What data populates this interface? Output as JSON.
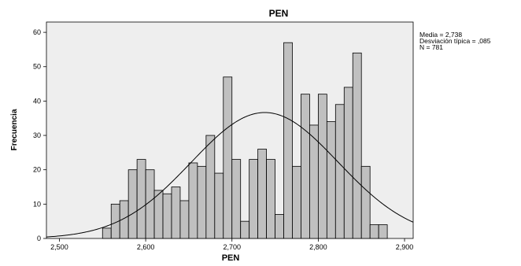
{
  "chart_data": {
    "type": "bar",
    "title": "PEN",
    "xlabel": "PEN",
    "ylabel": "Frecuencia",
    "xlim": [
      2.485,
      2.91
    ],
    "ylim": [
      0,
      63
    ],
    "x_ticks": [
      2.5,
      2.6,
      2.7,
      2.8,
      2.9
    ],
    "x_tick_labels": [
      "2,500",
      "2,600",
      "2,700",
      "2,800",
      "2,900"
    ],
    "y_ticks": [
      0,
      10,
      20,
      30,
      40,
      50,
      60
    ],
    "y_tick_labels": [
      "0",
      "10",
      "20",
      "30",
      "40",
      "50",
      "60"
    ],
    "bin_width": 0.01,
    "bin_starts": [
      2.55,
      2.56,
      2.57,
      2.58,
      2.59,
      2.6,
      2.61,
      2.62,
      2.63,
      2.64,
      2.65,
      2.66,
      2.67,
      2.68,
      2.69,
      2.7,
      2.71,
      2.72,
      2.73,
      2.74,
      2.75,
      2.76,
      2.77,
      2.78,
      2.79,
      2.8,
      2.81,
      2.82,
      2.83,
      2.84,
      2.85,
      2.86,
      2.87
    ],
    "values": [
      3,
      10,
      11,
      20,
      23,
      20,
      14,
      13,
      15,
      11,
      22,
      21,
      30,
      19,
      47,
      23,
      5,
      23,
      26,
      23,
      7,
      57,
      21,
      42,
      33,
      42,
      34,
      39,
      44,
      54,
      21,
      4,
      4
    ],
    "normal_curve": {
      "mean": 2.738,
      "sd": 0.085,
      "n": 781
    },
    "grid": false,
    "colors": {
      "bar_fill": "#c0c0c0",
      "bar_stroke": "#000000",
      "plot_background": "#eeeeee",
      "curve": "#000000"
    }
  },
  "stats_box": {
    "line1": "Media = 2,738",
    "line2": "Desviación típica = ,085",
    "line3": "N = 781"
  }
}
